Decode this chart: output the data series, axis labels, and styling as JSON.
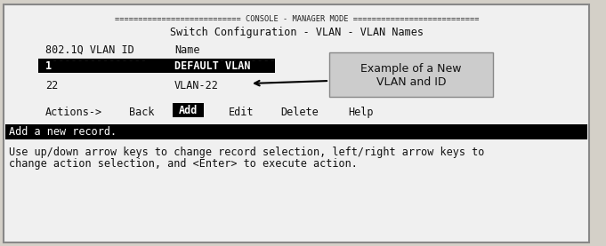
{
  "bg_color": "#d4d0c8",
  "outer_border_color": "#888888",
  "inner_bg_color": "#f0f0f0",
  "title_line": "=========================== CONSOLE - MANAGER MODE ===========================",
  "subtitle": "Switch Configuration - VLAN - VLAN Names",
  "col_header1": "802.1Q VLAN ID",
  "col_header2": "Name",
  "dashes1": "----------------",
  "dashes2": "----------------",
  "row1_id": "1",
  "row1_name": "DEFAULT VLAN",
  "row2_id": "22",
  "row2_name": "VLAN-22",
  "highlight_bg": "#000000",
  "highlight_fg": "#ffffff",
  "actions_label": "Actions->",
  "actions": [
    "Back",
    "Add",
    "Edit",
    "Delete",
    "Help"
  ],
  "status_bar_text": "Add a new record.",
  "status_bar_bg": "#000000",
  "status_bar_fg": "#ffffff",
  "bottom_text1": "Use up/down arrow keys to change record selection, left/right arrow keys to",
  "bottom_text2": "change action selection, and <Enter> to execute action.",
  "callout_text1": "Example of a New",
  "callout_text2": "VLAN and ID",
  "callout_bg": "#cccccc",
  "font_family": "monospace",
  "font_size": 8.5
}
